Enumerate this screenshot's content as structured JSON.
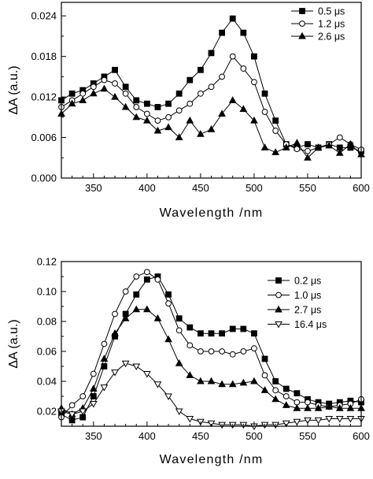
{
  "chart_data": [
    {
      "type": "line",
      "xlabel": "Wavelength /nm",
      "ylabel": "ΔA (a.u.)",
      "xlim": [
        320,
        600
      ],
      "ylim": [
        0,
        0.026
      ],
      "xticks": [
        350,
        400,
        450,
        500,
        550,
        600
      ],
      "yticks": [
        "0.000",
        "0.006",
        "0.012",
        "0.018",
        "0.024"
      ],
      "ytick_values": [
        0,
        0.006,
        0.012,
        0.018,
        0.024
      ],
      "legend": "top-right",
      "grid": false,
      "series": [
        {
          "name": "0.5 μs",
          "marker": "square-filled",
          "x": [
            320,
            330,
            340,
            350,
            360,
            370,
            380,
            390,
            400,
            410,
            420,
            430,
            440,
            450,
            460,
            470,
            480,
            490,
            500,
            510,
            520,
            530,
            540,
            550,
            560,
            570,
            580,
            590,
            600
          ],
          "y": [
            0.0115,
            0.0125,
            0.013,
            0.014,
            0.015,
            0.016,
            0.0135,
            0.0115,
            0.011,
            0.0105,
            0.011,
            0.0125,
            0.0145,
            0.016,
            0.0185,
            0.0215,
            0.0236,
            0.0215,
            0.018,
            0.0125,
            0.0085,
            0.005,
            0.0045,
            0.005,
            0.0045,
            0.005,
            0.0045,
            0.0045,
            0.004
          ]
        },
        {
          "name": "1.2 μs",
          "marker": "circle-open",
          "x": [
            320,
            330,
            340,
            350,
            360,
            370,
            380,
            390,
            400,
            410,
            420,
            430,
            440,
            450,
            460,
            470,
            480,
            490,
            500,
            510,
            520,
            530,
            540,
            550,
            560,
            570,
            580,
            590,
            600
          ],
          "y": [
            0.0105,
            0.0115,
            0.0125,
            0.0135,
            0.0145,
            0.014,
            0.0125,
            0.0105,
            0.0095,
            0.0085,
            0.009,
            0.01,
            0.011,
            0.0125,
            0.0135,
            0.015,
            0.018,
            0.0162,
            0.0142,
            0.0098,
            0.007,
            0.005,
            0.0043,
            0.004,
            0.0045,
            0.005,
            0.006,
            0.005,
            0.0042
          ]
        },
        {
          "name": "2.6 μs",
          "marker": "triangle-filled",
          "x": [
            320,
            330,
            340,
            350,
            360,
            370,
            380,
            390,
            400,
            410,
            420,
            430,
            440,
            450,
            460,
            470,
            480,
            490,
            500,
            510,
            520,
            530,
            540,
            550,
            560,
            570,
            580,
            590,
            600
          ],
          "y": [
            0.0095,
            0.011,
            0.0115,
            0.0125,
            0.0132,
            0.012,
            0.0105,
            0.009,
            0.0085,
            0.007,
            0.0075,
            0.006,
            0.0085,
            0.0065,
            0.0072,
            0.0095,
            0.0115,
            0.0102,
            0.0085,
            0.0045,
            0.0038,
            0.0045,
            0.0052,
            0.003,
            0.0045,
            0.0048,
            0.0037,
            0.005,
            0.0035
          ]
        }
      ]
    },
    {
      "type": "line",
      "xlabel": "Wavelength /nm",
      "ylabel": "ΔA (a.u.)",
      "xlim": [
        320,
        600
      ],
      "ylim": [
        0.01,
        0.12
      ],
      "xticks": [
        350,
        400,
        450,
        500,
        550,
        600
      ],
      "yticks": [
        "0.02",
        "0.04",
        "0.06",
        "0.08",
        "0.10",
        "0.12"
      ],
      "ytick_values": [
        0.02,
        0.04,
        0.06,
        0.08,
        0.1,
        0.12
      ],
      "legend": "top-right",
      "grid": false,
      "series": [
        {
          "name": "0.2 μs",
          "marker": "square-filled",
          "x": [
            320,
            330,
            340,
            350,
            360,
            370,
            380,
            390,
            400,
            410,
            420,
            430,
            440,
            450,
            460,
            470,
            480,
            490,
            500,
            510,
            520,
            530,
            540,
            550,
            560,
            570,
            580,
            590,
            600
          ],
          "y": [
            0.018,
            0.014,
            0.016,
            0.03,
            0.05,
            0.07,
            0.085,
            0.098,
            0.108,
            0.11,
            0.098,
            0.082,
            0.076,
            0.072,
            0.072,
            0.072,
            0.075,
            0.075,
            0.072,
            0.055,
            0.04,
            0.035,
            0.032,
            0.028,
            0.026,
            0.025,
            0.026,
            0.027,
            0.026
          ]
        },
        {
          "name": "1.0 μs",
          "marker": "circle-open",
          "x": [
            320,
            330,
            340,
            350,
            360,
            370,
            380,
            390,
            400,
            410,
            420,
            430,
            440,
            450,
            460,
            470,
            480,
            490,
            500,
            510,
            520,
            530,
            540,
            550,
            560,
            570,
            580,
            590,
            600
          ],
          "y": [
            0.016,
            0.024,
            0.03,
            0.045,
            0.065,
            0.085,
            0.1,
            0.11,
            0.113,
            0.108,
            0.092,
            0.074,
            0.064,
            0.06,
            0.06,
            0.06,
            0.058,
            0.06,
            0.062,
            0.044,
            0.034,
            0.03,
            0.026,
            0.026,
            0.024,
            0.023,
            0.024,
            0.025,
            0.028
          ]
        },
        {
          "name": "2.7 μs",
          "marker": "triangle-filled",
          "x": [
            320,
            330,
            340,
            350,
            360,
            370,
            380,
            390,
            400,
            410,
            420,
            430,
            440,
            450,
            460,
            470,
            480,
            490,
            500,
            510,
            520,
            530,
            540,
            550,
            560,
            570,
            580,
            590,
            600
          ],
          "y": [
            0.022,
            0.018,
            0.022,
            0.035,
            0.055,
            0.072,
            0.082,
            0.088,
            0.088,
            0.082,
            0.068,
            0.052,
            0.044,
            0.04,
            0.04,
            0.038,
            0.038,
            0.039,
            0.04,
            0.034,
            0.028,
            0.024,
            0.022,
            0.022,
            0.022,
            0.023,
            0.022,
            0.022,
            0.022
          ]
        },
        {
          "name": "16.4 μs",
          "marker": "triangle-down-open",
          "x": [
            320,
            330,
            340,
            350,
            360,
            370,
            380,
            390,
            400,
            410,
            420,
            430,
            440,
            450,
            460,
            470,
            480,
            490,
            500,
            510,
            520,
            530,
            540,
            550,
            560,
            570,
            580,
            590,
            600
          ],
          "y": [
            0.02,
            0.018,
            0.02,
            0.025,
            0.036,
            0.046,
            0.052,
            0.05,
            0.045,
            0.038,
            0.03,
            0.02,
            0.015,
            0.013,
            0.012,
            0.011,
            0.011,
            0.011,
            0.01,
            0.011,
            0.011,
            0.012,
            0.013,
            0.014,
            0.014,
            0.015,
            0.015,
            0.015,
            0.015
          ]
        }
      ]
    }
  ]
}
